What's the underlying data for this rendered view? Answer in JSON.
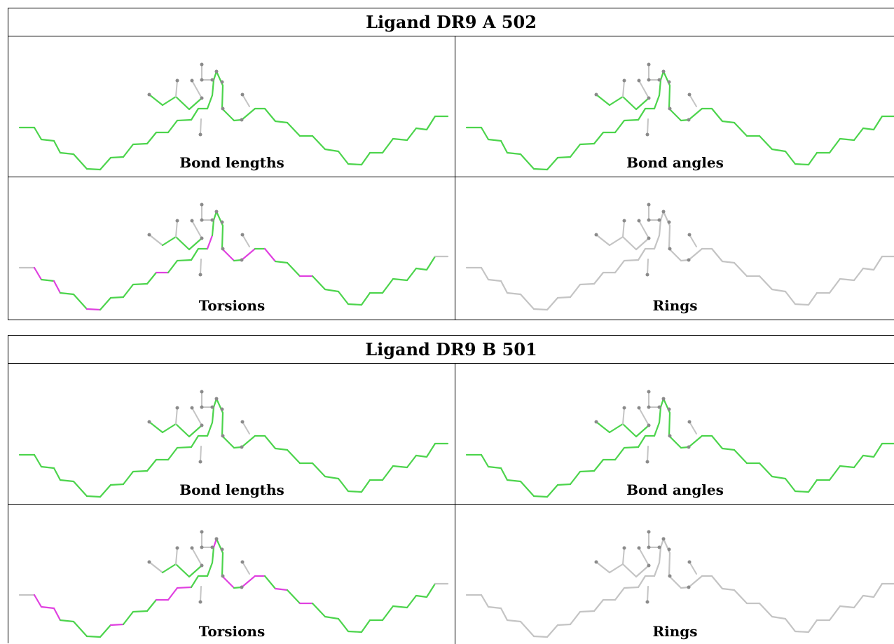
{
  "blocks": [
    {
      "title": "Ligand DR9 A 502",
      "panels": [
        {
          "caption": "Bond lengths",
          "mode": "green",
          "magenta": []
        },
        {
          "caption": "Bond angles",
          "mode": "green",
          "magenta": []
        },
        {
          "caption": "Torsions",
          "mode": "torsion",
          "magenta": [
            1,
            3,
            6,
            12,
            17,
            22,
            24,
            26,
            29
          ]
        },
        {
          "caption": "Rings",
          "mode": "grey",
          "magenta": []
        }
      ]
    },
    {
      "title": "Ligand DR9 B 501",
      "panels": [
        {
          "caption": "Bond lengths",
          "mode": "green",
          "magenta": []
        },
        {
          "caption": "Bond angles",
          "mode": "green",
          "magenta": []
        },
        {
          "caption": "Torsions",
          "mode": "torsion",
          "magenta": [
            1,
            2,
            3,
            8,
            12,
            13,
            14,
            19,
            22,
            24,
            25,
            27,
            29
          ]
        },
        {
          "caption": "Rings",
          "mode": "grey",
          "magenta": []
        }
      ]
    }
  ],
  "colors": {
    "green": "#4cd44c",
    "magenta": "#e040e0",
    "grey": "#c4c4c4",
    "atom": "#8a8a8a",
    "border": "#000000"
  }
}
